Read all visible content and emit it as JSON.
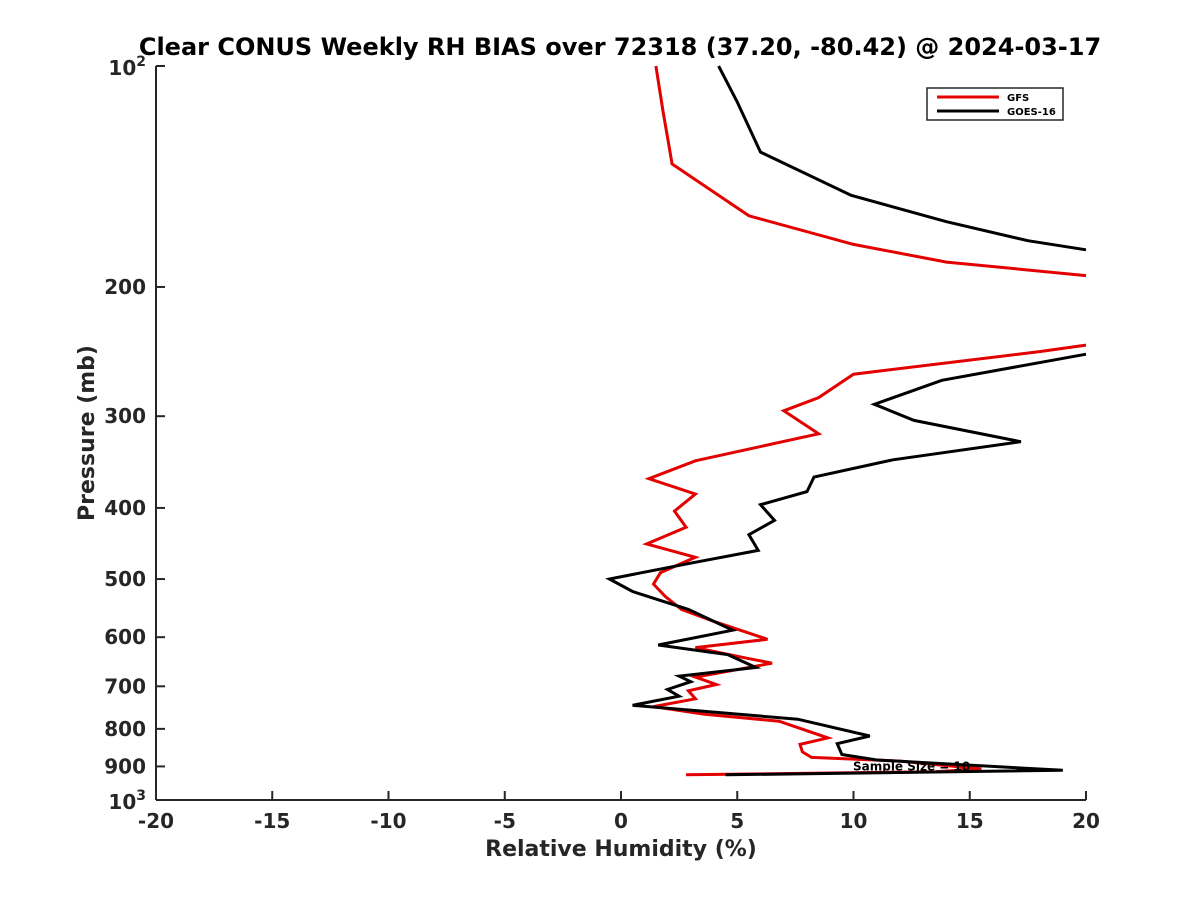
{
  "chart_data": {
    "type": "line",
    "title": "Clear CONUS Weekly RH BIAS over 72318 (37.20, -80.42) @ 2024-03-17",
    "xlabel": "Relative Humidity (%)",
    "ylabel": "Pressure (mb)",
    "xlim": [
      -20,
      20
    ],
    "ylim": [
      100,
      1000
    ],
    "y_scale": "log",
    "y_reversed": true,
    "grid": false,
    "legend_position": "top-right",
    "x_ticks": [
      "-20",
      "-15",
      "-10",
      "-5",
      "0",
      "5",
      "10",
      "15",
      "20"
    ],
    "y_ticks": [
      {
        "base": "10",
        "exp": "2",
        "value": 100
      },
      {
        "label": "200",
        "value": 200
      },
      {
        "label": "300",
        "value": 300
      },
      {
        "label": "400",
        "value": 400
      },
      {
        "label": "500",
        "value": 500
      },
      {
        "label": "600",
        "value": 600
      },
      {
        "label": "700",
        "value": 700
      },
      {
        "label": "800",
        "value": 800
      },
      {
        "label": "900",
        "value": 900
      },
      {
        "base": "10",
        "exp": "3",
        "value": 1000
      }
    ],
    "annotation": {
      "text": "Sample Size = 10",
      "x": 12.5,
      "y": 900
    },
    "series": [
      {
        "name": "GFS",
        "color": "#e30000",
        "points": [
          [
            1.5,
            100
          ],
          [
            1.8,
            115
          ],
          [
            2.2,
            136
          ],
          [
            5.5,
            160
          ],
          [
            10,
            175
          ],
          [
            14,
            185
          ],
          [
            20,
            193
          ],
          [
            null,
            null
          ],
          [
            20,
            240
          ],
          [
            18,
            245
          ],
          [
            10,
            263
          ],
          [
            8.5,
            283
          ],
          [
            7,
            295
          ],
          [
            8.5,
            317
          ],
          [
            3.2,
            345
          ],
          [
            1.2,
            365
          ],
          [
            3.2,
            383
          ],
          [
            2.3,
            404
          ],
          [
            2.8,
            425
          ],
          [
            1.1,
            448
          ],
          [
            3.2,
            467
          ],
          [
            1.7,
            490
          ],
          [
            1.4,
            508
          ],
          [
            1.9,
            528
          ],
          [
            2.6,
            550
          ],
          [
            4,
            571
          ],
          [
            6.3,
            604
          ],
          [
            3.2,
            620
          ],
          [
            5.3,
            640
          ],
          [
            6.5,
            651
          ],
          [
            3.2,
            680
          ],
          [
            4.1,
            696
          ],
          [
            2.9,
            710
          ],
          [
            3.2,
            728
          ],
          [
            1.4,
            746
          ],
          [
            3.6,
            764
          ],
          [
            6.8,
            781
          ],
          [
            8.9,
            823
          ],
          [
            7.7,
            840
          ],
          [
            7.8,
            860
          ],
          [
            8.2,
            875
          ],
          [
            12,
            885
          ],
          [
            13.2,
            893
          ],
          [
            15.5,
            907
          ],
          [
            13.5,
            915
          ],
          [
            2.8,
            924
          ]
        ]
      },
      {
        "name": "GOES-16",
        "color": "#000000",
        "points": [
          [
            4.2,
            100
          ],
          [
            5,
            112
          ],
          [
            6,
            131
          ],
          [
            9.9,
            150
          ],
          [
            14,
            163
          ],
          [
            17.5,
            173
          ],
          [
            20,
            178
          ],
          [
            null,
            null
          ],
          [
            20,
            247
          ],
          [
            13.8,
            268
          ],
          [
            10.9,
            289
          ],
          [
            12.6,
            304
          ],
          [
            17.2,
            325
          ],
          [
            11.7,
            344
          ],
          [
            8.3,
            363
          ],
          [
            8,
            380
          ],
          [
            6,
            396
          ],
          [
            6.6,
            416
          ],
          [
            5.5,
            435
          ],
          [
            5.9,
            457
          ],
          [
            3.1,
            475
          ],
          [
            -0.5,
            500
          ],
          [
            0.5,
            520
          ],
          [
            2.9,
            550
          ],
          [
            4.8,
            587
          ],
          [
            1.6,
            615
          ],
          [
            4.6,
            634
          ],
          [
            5.8,
            660
          ],
          [
            2.5,
            678
          ],
          [
            3,
            690
          ],
          [
            2,
            707
          ],
          [
            2.5,
            722
          ],
          [
            0.5,
            743
          ],
          [
            7.6,
            776
          ],
          [
            10.7,
            818
          ],
          [
            9.3,
            838
          ],
          [
            9.5,
            867
          ],
          [
            11,
            882
          ],
          [
            19,
            911
          ],
          [
            4.5,
            924
          ]
        ]
      }
    ]
  }
}
